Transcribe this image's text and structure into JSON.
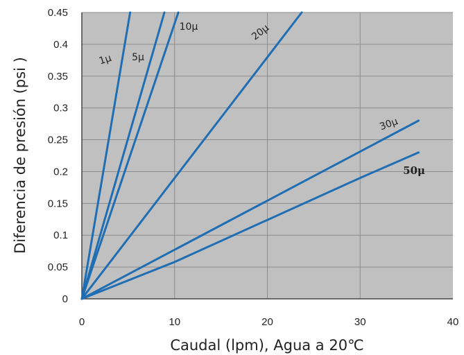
{
  "chart_data": {
    "type": "line",
    "xlabel": "Caudal (lpm), Agua a 20℃",
    "ylabel": "Diferencia de presión  (psi )",
    "xlim": [
      0,
      40
    ],
    "ylim": [
      0,
      0.45
    ],
    "x_ticks": [
      "0",
      "10",
      "20",
      "30",
      "40"
    ],
    "y_ticks": [
      "0",
      "0.05",
      "0.1",
      "0.15",
      "0.2",
      "0.25",
      "0.3",
      "0.35",
      "0.4",
      "0.45"
    ],
    "grid": true,
    "background": "#c0c0c0",
    "grid_color": "#8c8c8c",
    "line_color": "#1f6eb4",
    "series": [
      {
        "name": "1μ",
        "x": [
          0,
          5.2
        ],
        "y": [
          0,
          0.45
        ]
      },
      {
        "name": "5μ",
        "x": [
          0,
          8.9
        ],
        "y": [
          0,
          0.45
        ]
      },
      {
        "name": "10μ",
        "x": [
          0,
          10.4
        ],
        "y": [
          0,
          0.45
        ]
      },
      {
        "name": "20μ",
        "x": [
          0,
          23.7
        ],
        "y": [
          0,
          0.45
        ]
      },
      {
        "name": "30μ",
        "x": [
          0,
          36.3
        ],
        "y": [
          0,
          0.28
        ]
      },
      {
        "name": "50μ",
        "x": [
          0,
          10,
          20,
          30,
          36.3
        ],
        "y": [
          0,
          0.058,
          0.124,
          0.19,
          0.23
        ]
      }
    ]
  }
}
